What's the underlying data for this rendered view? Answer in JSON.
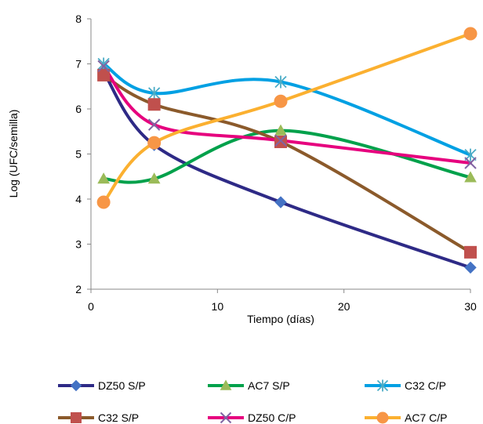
{
  "chart_data": {
    "type": "line",
    "xlabel": "Tiempo (días)",
    "ylabel": "Log (UFC/semilla)",
    "xlim": [
      0,
      30
    ],
    "ylim": [
      2,
      8
    ],
    "xticks": [
      0,
      10,
      20,
      30
    ],
    "yticks": [
      2,
      3,
      4,
      5,
      6,
      7,
      8
    ],
    "x": [
      1,
      5,
      15,
      30
    ],
    "legend_position": "bottom",
    "grid": false,
    "series": [
      {
        "name": "DZ50 S/P",
        "values": [
          6.82,
          5.2,
          3.93,
          2.48
        ],
        "color": "#2E2A86",
        "marker": "diamond",
        "marker_color": "#4472C4"
      },
      {
        "name": "AC7 S/P",
        "values": [
          4.45,
          4.45,
          5.52,
          4.48
        ],
        "color": "#00A14B",
        "marker": "triangle",
        "marker_color": "#9BBB59"
      },
      {
        "name": "C32 C/P",
        "values": [
          7.0,
          6.35,
          6.6,
          4.98
        ],
        "color": "#00A0E3",
        "marker": "asterisk",
        "marker_color": "#4BACC6"
      },
      {
        "name": "C32 S/P",
        "values": [
          6.75,
          6.1,
          5.27,
          2.82
        ],
        "color": "#8B5A2B",
        "marker": "square",
        "marker_color": "#C0504D"
      },
      {
        "name": "DZ50 C/P",
        "values": [
          6.95,
          5.65,
          5.3,
          4.8
        ],
        "color": "#E6007E",
        "marker": "x",
        "marker_color": "#8064A2"
      },
      {
        "name": "AC7 C/P",
        "values": [
          3.93,
          5.25,
          6.17,
          7.67
        ],
        "color": "#FBB030",
        "marker": "circle",
        "marker_color": "#F79646"
      }
    ]
  }
}
